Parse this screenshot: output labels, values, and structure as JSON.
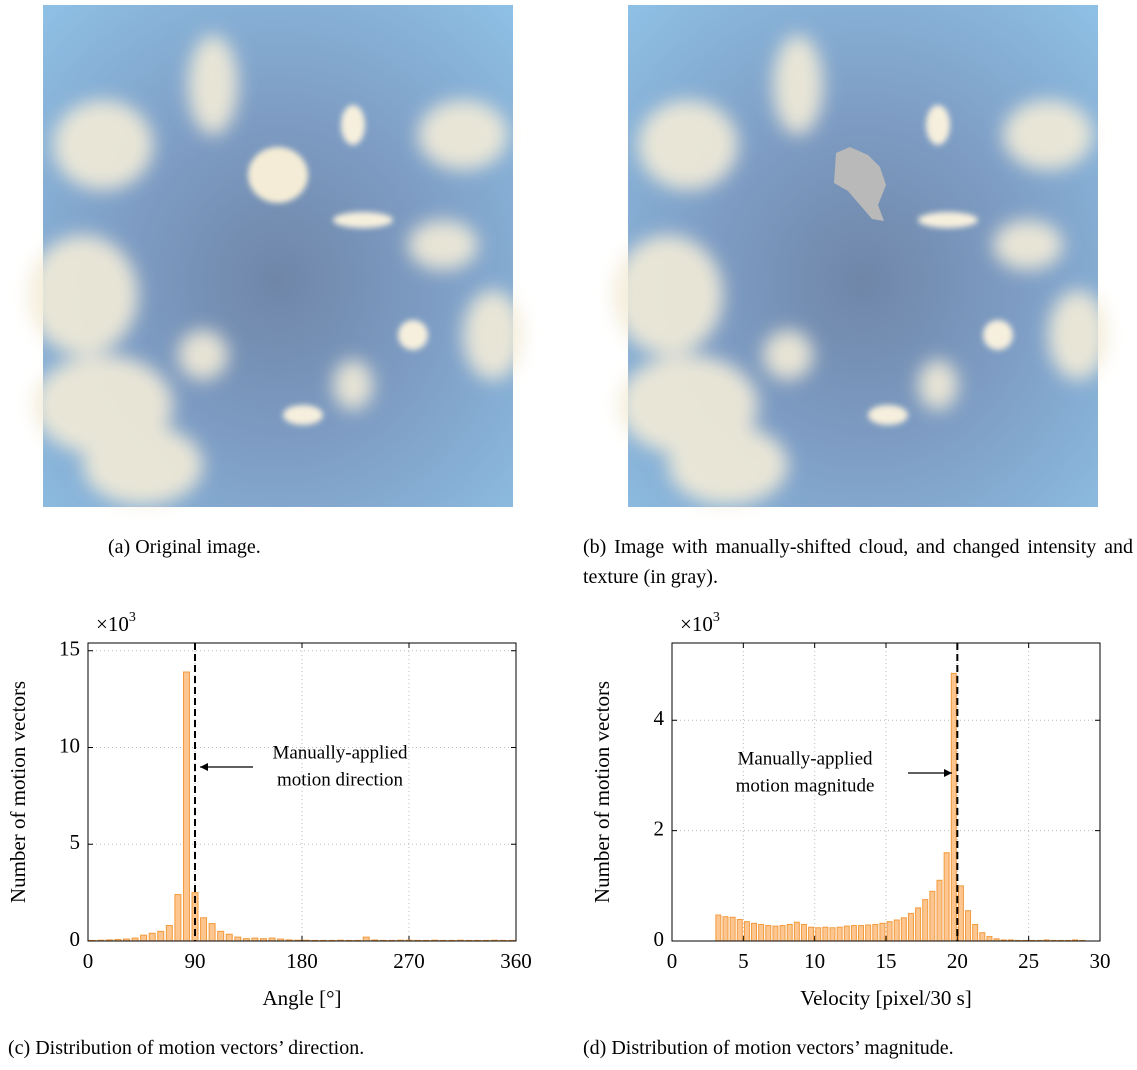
{
  "figure": {
    "panels": [
      {
        "caption": "(a) Original image."
      },
      {
        "caption": "(b) Image with manually-shifted cloud, and changed intensity and texture (in gray)."
      }
    ]
  },
  "chart_data": [
    {
      "type": "histogram",
      "caption": "(c) Distribution of motion vectors’ direction.",
      "xlabel": "Angle [°]",
      "ylabel": "Number of motion vectors",
      "ylabel_multiplier": "×10",
      "ylabel_multiplier_exponent": "3",
      "bins": [
        0,
        7.2,
        14.4,
        21.6,
        28.8,
        36,
        43.2,
        50.4,
        57.6,
        64.8,
        72,
        79.2,
        86.4,
        93.6,
        100.8,
        108,
        115.2,
        122.4,
        129.6,
        136.8,
        144,
        151.2,
        158.4,
        165.6,
        172.8,
        180,
        187.2,
        194.4,
        201.6,
        208.8,
        216,
        223.2,
        230.4,
        237.6,
        244.8,
        252,
        259.2,
        266.4,
        273.6,
        280.8,
        288,
        295.2,
        302.4,
        309.6,
        316.8,
        324,
        331.2,
        338.4,
        345.6,
        352.8,
        360
      ],
      "values": [
        0.03,
        0.04,
        0.06,
        0.08,
        0.1,
        0.15,
        0.3,
        0.4,
        0.5,
        0.8,
        2.4,
        13.9,
        2.5,
        1.2,
        0.9,
        0.5,
        0.35,
        0.2,
        0.12,
        0.15,
        0.12,
        0.15,
        0.1,
        0.06,
        0.04,
        0.04,
        0.03,
        0.03,
        0.03,
        0.04,
        0.03,
        0.03,
        0.2,
        0.05,
        0.03,
        0.03,
        0.04,
        0.04,
        0.03,
        0.03,
        0.04,
        0.03,
        0.03,
        0.04,
        0.03,
        0.03,
        0.03,
        0.04,
        0.03,
        0.03
      ],
      "color": "#fdc690",
      "edge_color": "#f39a3c",
      "xlim": [
        0,
        360
      ],
      "ylim": [
        0,
        15.4
      ],
      "xticks": [
        0,
        90,
        180,
        270,
        360
      ],
      "yticks": [
        0,
        5,
        10,
        15
      ],
      "grid": true,
      "reference_line": 90,
      "annotation": [
        "Manually-applied",
        "motion direction"
      ]
    },
    {
      "type": "histogram",
      "caption": "(d) Distribution of motion vectors’ magnitude.",
      "xlabel": "Velocity [pixel/30 s]",
      "ylabel": "Number of motion vectors",
      "ylabel_multiplier": "×10",
      "ylabel_multiplier_exponent": "3",
      "bins": [
        3,
        3.5,
        4,
        4.5,
        5,
        5.5,
        6,
        6.5,
        7,
        7.5,
        8,
        8.5,
        9,
        9.5,
        10,
        10.5,
        11,
        11.5,
        12,
        12.5,
        13,
        13.5,
        14,
        14.5,
        15,
        15.5,
        16,
        16.5,
        17,
        17.5,
        18,
        18.5,
        19,
        19.5,
        20,
        20.5,
        21,
        21.5,
        22,
        22.5,
        23,
        23.5,
        24,
        24.5,
        25,
        25.5,
        26,
        26.5,
        27,
        27.5,
        28,
        28.5,
        29
      ],
      "values": [
        0.47,
        0.44,
        0.43,
        0.39,
        0.35,
        0.32,
        0.3,
        0.28,
        0.27,
        0.28,
        0.3,
        0.34,
        0.3,
        0.25,
        0.24,
        0.25,
        0.24,
        0.25,
        0.27,
        0.28,
        0.28,
        0.29,
        0.3,
        0.32,
        0.35,
        0.38,
        0.42,
        0.5,
        0.6,
        0.75,
        0.9,
        1.1,
        1.6,
        4.85,
        1.0,
        0.55,
        0.3,
        0.15,
        0.08,
        0.04,
        0.02,
        0.02,
        0.01,
        0.01,
        0.01,
        0.01,
        0.02,
        0.01,
        0.01,
        0.01,
        0.02,
        0.01
      ],
      "color": "#fdc690",
      "edge_color": "#f39a3c",
      "xlim": [
        0,
        30
      ],
      "ylim": [
        0,
        5.4
      ],
      "xticks": [
        0,
        5,
        10,
        15,
        20,
        25,
        30
      ],
      "yticks": [
        0,
        2,
        4
      ],
      "grid": true,
      "reference_line": 20,
      "annotation": [
        "Manually-applied",
        "motion magnitude"
      ]
    }
  ]
}
